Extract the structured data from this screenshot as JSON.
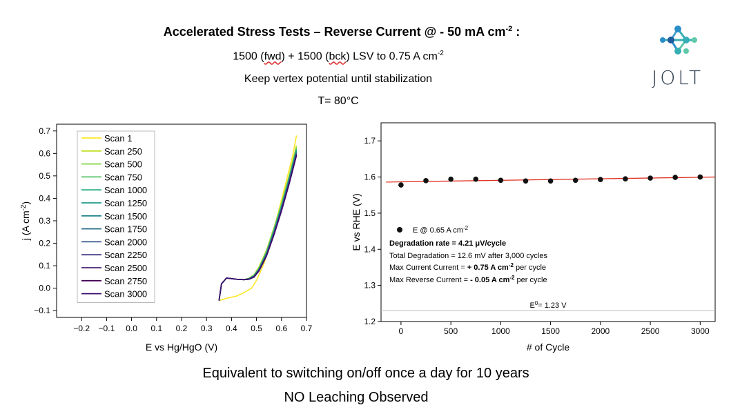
{
  "header": {
    "title_main": "Accelerated Stress Tests – Reverse Current @ - 50 mA cm",
    "title_sup": "-2",
    "title_tail": " :",
    "line2_a": "1500 (",
    "line2_fwd": "fwd",
    "line2_b": ") + 1500 (",
    "line2_bck": "bck",
    "line2_c": ") LSV to 0.75 A cm",
    "line2_sup": "-2",
    "line3": "Keep vertex potential until stabilization",
    "line4": "T= 80°C"
  },
  "logo": {
    "text": "JOLT",
    "colors": [
      "#1e5a9c",
      "#2b8fc7",
      "#36b0b5",
      "#5fc9a8"
    ]
  },
  "footer": {
    "line1": "Equivalent to switching on/off once a day for 10 years",
    "line2": "NO Leaching Observed"
  },
  "chart_data": [
    {
      "type": "line",
      "xlabel": "E vs Hg/HgO (V)",
      "ylabel": "j (A cm",
      "ylabel_sup": "-2",
      "ylabel_tail": ")",
      "xlim": [
        -0.3,
        0.7
      ],
      "ylim": [
        -0.13,
        0.73
      ],
      "xticks": [
        "−0.2",
        "−0.1",
        "0.0",
        "0.1",
        "0.2",
        "0.3",
        "0.4",
        "0.5",
        "0.6",
        "0.7"
      ],
      "xtick_values": [
        -0.2,
        -0.1,
        0.0,
        0.1,
        0.2,
        0.3,
        0.4,
        0.5,
        0.6,
        0.7
      ],
      "yticks": [
        "−0.1",
        "0.0",
        "0.1",
        "0.2",
        "0.3",
        "0.4",
        "0.5",
        "0.6",
        "0.7"
      ],
      "ytick_values": [
        -0.1,
        0.0,
        0.1,
        0.2,
        0.3,
        0.4,
        0.5,
        0.6,
        0.7
      ],
      "legend_position": "top-left",
      "series": [
        {
          "name": "Scan 1",
          "color": "#fde725",
          "x": [
            0.35,
            0.38,
            0.42,
            0.45,
            0.48,
            0.5,
            0.53,
            0.56,
            0.59,
            0.62,
            0.645,
            0.66
          ],
          "y": [
            -0.055,
            -0.045,
            -0.035,
            -0.02,
            0.0,
            0.035,
            0.11,
            0.22,
            0.35,
            0.48,
            0.59,
            0.68
          ]
        },
        {
          "name": "Scan 250",
          "color": "#c2df23",
          "x": [
            0.35,
            0.36,
            0.38,
            0.42,
            0.45,
            0.47,
            0.49,
            0.51,
            0.54,
            0.57,
            0.6,
            0.63,
            0.66
          ],
          "y": [
            -0.055,
            0.02,
            0.045,
            0.04,
            0.038,
            0.045,
            0.06,
            0.095,
            0.17,
            0.27,
            0.38,
            0.5,
            0.635
          ]
        },
        {
          "name": "Scan 500",
          "color": "#86d549",
          "x": [
            0.35,
            0.36,
            0.38,
            0.42,
            0.45,
            0.47,
            0.49,
            0.51,
            0.54,
            0.57,
            0.6,
            0.63,
            0.66
          ],
          "y": [
            -0.055,
            0.02,
            0.045,
            0.04,
            0.038,
            0.044,
            0.058,
            0.09,
            0.165,
            0.265,
            0.375,
            0.495,
            0.628
          ]
        },
        {
          "name": "Scan 750",
          "color": "#52c569",
          "x": [
            0.35,
            0.36,
            0.38,
            0.42,
            0.45,
            0.47,
            0.49,
            0.51,
            0.54,
            0.57,
            0.6,
            0.63,
            0.66
          ],
          "y": [
            -0.055,
            0.02,
            0.045,
            0.04,
            0.038,
            0.043,
            0.057,
            0.088,
            0.16,
            0.26,
            0.37,
            0.49,
            0.622
          ]
        },
        {
          "name": "Scan 1000",
          "color": "#2ab07f",
          "x": [
            0.35,
            0.36,
            0.38,
            0.42,
            0.45,
            0.47,
            0.49,
            0.51,
            0.54,
            0.57,
            0.6,
            0.63,
            0.66
          ],
          "y": [
            -0.055,
            0.02,
            0.045,
            0.04,
            0.038,
            0.043,
            0.056,
            0.086,
            0.158,
            0.256,
            0.366,
            0.486,
            0.617
          ]
        },
        {
          "name": "Scan 1250",
          "color": "#1e9b8a",
          "x": [
            0.35,
            0.36,
            0.38,
            0.42,
            0.45,
            0.47,
            0.49,
            0.51,
            0.54,
            0.57,
            0.6,
            0.63,
            0.66
          ],
          "y": [
            -0.055,
            0.02,
            0.045,
            0.04,
            0.038,
            0.042,
            0.055,
            0.085,
            0.156,
            0.253,
            0.362,
            0.482,
            0.612
          ]
        },
        {
          "name": "Scan 1500",
          "color": "#25858e",
          "x": [
            0.35,
            0.36,
            0.38,
            0.42,
            0.45,
            0.47,
            0.49,
            0.51,
            0.54,
            0.57,
            0.6,
            0.63,
            0.66
          ],
          "y": [
            -0.055,
            0.02,
            0.045,
            0.04,
            0.038,
            0.042,
            0.054,
            0.083,
            0.153,
            0.25,
            0.358,
            0.478,
            0.607
          ]
        },
        {
          "name": "Scan 1750",
          "color": "#2d708e",
          "x": [
            0.35,
            0.36,
            0.38,
            0.42,
            0.45,
            0.47,
            0.49,
            0.51,
            0.54,
            0.57,
            0.6,
            0.63,
            0.66
          ],
          "y": [
            -0.055,
            0.02,
            0.045,
            0.04,
            0.038,
            0.041,
            0.053,
            0.082,
            0.151,
            0.247,
            0.355,
            0.474,
            0.603
          ]
        },
        {
          "name": "Scan 2000",
          "color": "#38588c",
          "x": [
            0.35,
            0.36,
            0.38,
            0.42,
            0.45,
            0.47,
            0.49,
            0.51,
            0.54,
            0.57,
            0.6,
            0.63,
            0.66
          ],
          "y": [
            -0.055,
            0.02,
            0.045,
            0.04,
            0.038,
            0.041,
            0.052,
            0.08,
            0.149,
            0.244,
            0.352,
            0.471,
            0.6
          ]
        },
        {
          "name": "Scan 2250",
          "color": "#433e85",
          "x": [
            0.35,
            0.36,
            0.38,
            0.42,
            0.45,
            0.47,
            0.49,
            0.51,
            0.54,
            0.57,
            0.6,
            0.63,
            0.66
          ],
          "y": [
            -0.055,
            0.02,
            0.045,
            0.04,
            0.038,
            0.04,
            0.051,
            0.079,
            0.147,
            0.242,
            0.35,
            0.468,
            0.597
          ]
        },
        {
          "name": "Scan 2500",
          "color": "#482173",
          "x": [
            0.35,
            0.36,
            0.38,
            0.42,
            0.45,
            0.47,
            0.49,
            0.51,
            0.54,
            0.57,
            0.6,
            0.63,
            0.66
          ],
          "y": [
            -0.055,
            0.02,
            0.045,
            0.04,
            0.038,
            0.04,
            0.05,
            0.078,
            0.145,
            0.24,
            0.347,
            0.465,
            0.594
          ]
        },
        {
          "name": "Scan 2750",
          "color": "#440154",
          "x": [
            0.35,
            0.36,
            0.38,
            0.42,
            0.45,
            0.47,
            0.49,
            0.51,
            0.54,
            0.57,
            0.6,
            0.63,
            0.66
          ],
          "y": [
            -0.055,
            0.02,
            0.045,
            0.04,
            0.038,
            0.04,
            0.05,
            0.077,
            0.144,
            0.238,
            0.345,
            0.463,
            0.592
          ]
        },
        {
          "name": "Scan 3000",
          "color": "#3b0f70",
          "x": [
            0.35,
            0.36,
            0.38,
            0.42,
            0.45,
            0.47,
            0.49,
            0.51,
            0.54,
            0.57,
            0.6,
            0.63,
            0.66
          ],
          "y": [
            -0.055,
            0.02,
            0.045,
            0.04,
            0.038,
            0.04,
            0.049,
            0.076,
            0.143,
            0.237,
            0.343,
            0.461,
            0.59
          ]
        }
      ]
    },
    {
      "type": "scatter",
      "xlabel": "# of Cycle",
      "ylabel": "E vs RHE (V)",
      "xlim": [
        -200,
        3150
      ],
      "ylim": [
        1.2,
        1.75
      ],
      "xticks": [
        "0",
        "500",
        "1000",
        "1500",
        "2000",
        "2500",
        "3000"
      ],
      "xtick_values": [
        0,
        500,
        1000,
        1500,
        2000,
        2500,
        3000
      ],
      "yticks": [
        "1.2",
        "1.3",
        "1.4",
        "1.5",
        "1.6",
        "1.7"
      ],
      "ytick_values": [
        1.2,
        1.3,
        1.4,
        1.5,
        1.6,
        1.7
      ],
      "points": {
        "name": "E @ 0.65 A cm",
        "name_sup": "-2",
        "x": [
          0,
          250,
          500,
          750,
          1000,
          1250,
          1500,
          1750,
          2000,
          2250,
          2500,
          2750,
          3000
        ],
        "y": [
          1.578,
          1.59,
          1.594,
          1.594,
          1.591,
          1.589,
          1.589,
          1.591,
          1.593,
          1.595,
          1.597,
          1.599,
          1.6
        ]
      },
      "fit": {
        "color": "#e03020",
        "x": [
          -150,
          3150
        ],
        "y": [
          1.586,
          1.6
        ]
      },
      "reference": {
        "y": 1.23,
        "label": "E",
        "label_sup": "0",
        "label_tail": "= 1.23 V"
      },
      "annotations": {
        "deg_rate_label": "Degradation rate = ",
        "deg_rate_value": "4.21 μV/cycle",
        "total_deg": "Total Degradation = 12.6 mV after 3,000 cycles",
        "max_current_a": "Max Current Current = ",
        "max_current_b": "+ 0.75 A cm",
        "max_current_sup": "-2",
        "max_current_c": " per cycle",
        "max_reverse_a": "Max Reverse Current = ",
        "max_reverse_b": "- 0.05 A cm",
        "max_reverse_sup": "-2",
        "max_reverse_c": " per cycle"
      }
    }
  ]
}
